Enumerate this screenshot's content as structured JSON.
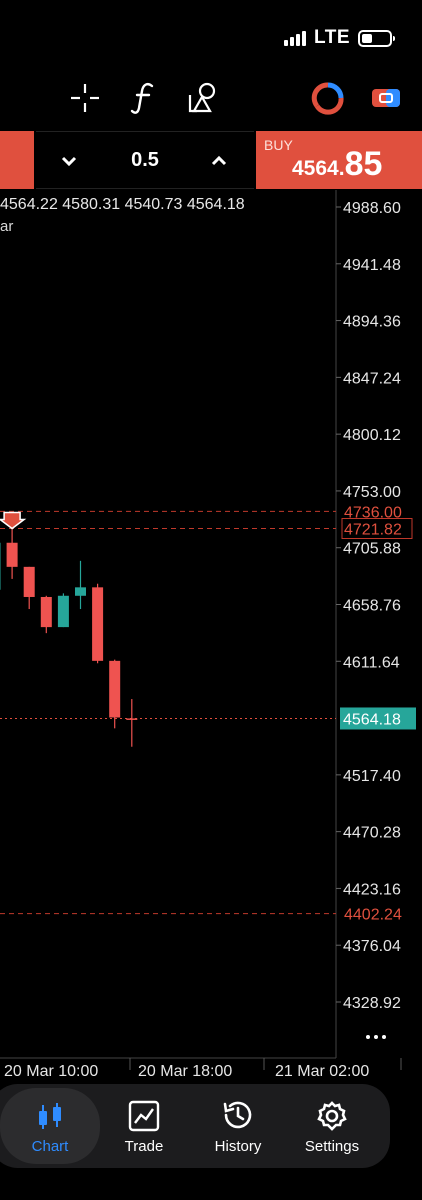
{
  "status_bar": {
    "network": "LTE"
  },
  "toolbar": {
    "icons": [
      "crosshair-icon",
      "function-icon",
      "objects-icon",
      "indicator-icon",
      "trade-ticket-icon"
    ]
  },
  "trade_bar": {
    "lot_value": "0.5",
    "buy_label": "BUY",
    "buy_price_main": "4564.",
    "buy_price_big": "85",
    "sell_color": "#e0503e",
    "buy_color": "#e0503e"
  },
  "chart_header": {
    "ohlc": "4564.22 4580.31 4540.73 4564.18",
    "symbol_fragment": "ar"
  },
  "price_axis": {
    "ticks": [
      "4988.60",
      "4941.48",
      "4894.36",
      "4847.24",
      "4800.12",
      "4753.00",
      "4705.88",
      "4658.76",
      "4611.64",
      "4517.40",
      "4470.28",
      "4423.16",
      "4376.04",
      "4328.92"
    ],
    "current_price": "4564.18",
    "levels": [
      {
        "value": "4736.00",
        "kind": "stop"
      },
      {
        "value": "4721.82",
        "kind": "entry"
      },
      {
        "value": "4402.24",
        "kind": "stop"
      }
    ]
  },
  "time_axis": {
    "labels": [
      "20 Mar 10:00",
      "20 Mar 18:00",
      "21 Mar 02:00"
    ]
  },
  "chart_data": {
    "type": "candlestick",
    "title": "",
    "ylim": [
      4305,
      5010
    ],
    "colors": {
      "up": "#26a69a",
      "down": "#ef5350"
    },
    "candles": [
      {
        "o": 4671,
        "h": 4712,
        "l": 4671,
        "c": 4710
      },
      {
        "o": 4710,
        "h": 4722,
        "l": 4680,
        "c": 4690
      },
      {
        "o": 4690,
        "h": 4690,
        "l": 4655,
        "c": 4665
      },
      {
        "o": 4665,
        "h": 4666,
        "l": 4635,
        "c": 4640
      },
      {
        "o": 4640,
        "h": 4668,
        "l": 4640,
        "c": 4666
      },
      {
        "o": 4666,
        "h": 4695,
        "l": 4655,
        "c": 4673
      },
      {
        "o": 4673,
        "h": 4676,
        "l": 4610,
        "c": 4612
      },
      {
        "o": 4612,
        "h": 4613,
        "l": 4556,
        "c": 4565
      },
      {
        "o": 4564.22,
        "h": 4580.31,
        "l": 4540.73,
        "c": 4564.18
      }
    ]
  },
  "nav": {
    "items": [
      {
        "label": "Chart",
        "icon": "candles-icon",
        "active": true
      },
      {
        "label": "Trade",
        "icon": "trade-chart-icon",
        "active": false
      },
      {
        "label": "History",
        "icon": "history-icon",
        "active": false
      },
      {
        "label": "Settings",
        "icon": "gear-icon",
        "active": false
      }
    ],
    "active_color": "#2f8cff"
  }
}
